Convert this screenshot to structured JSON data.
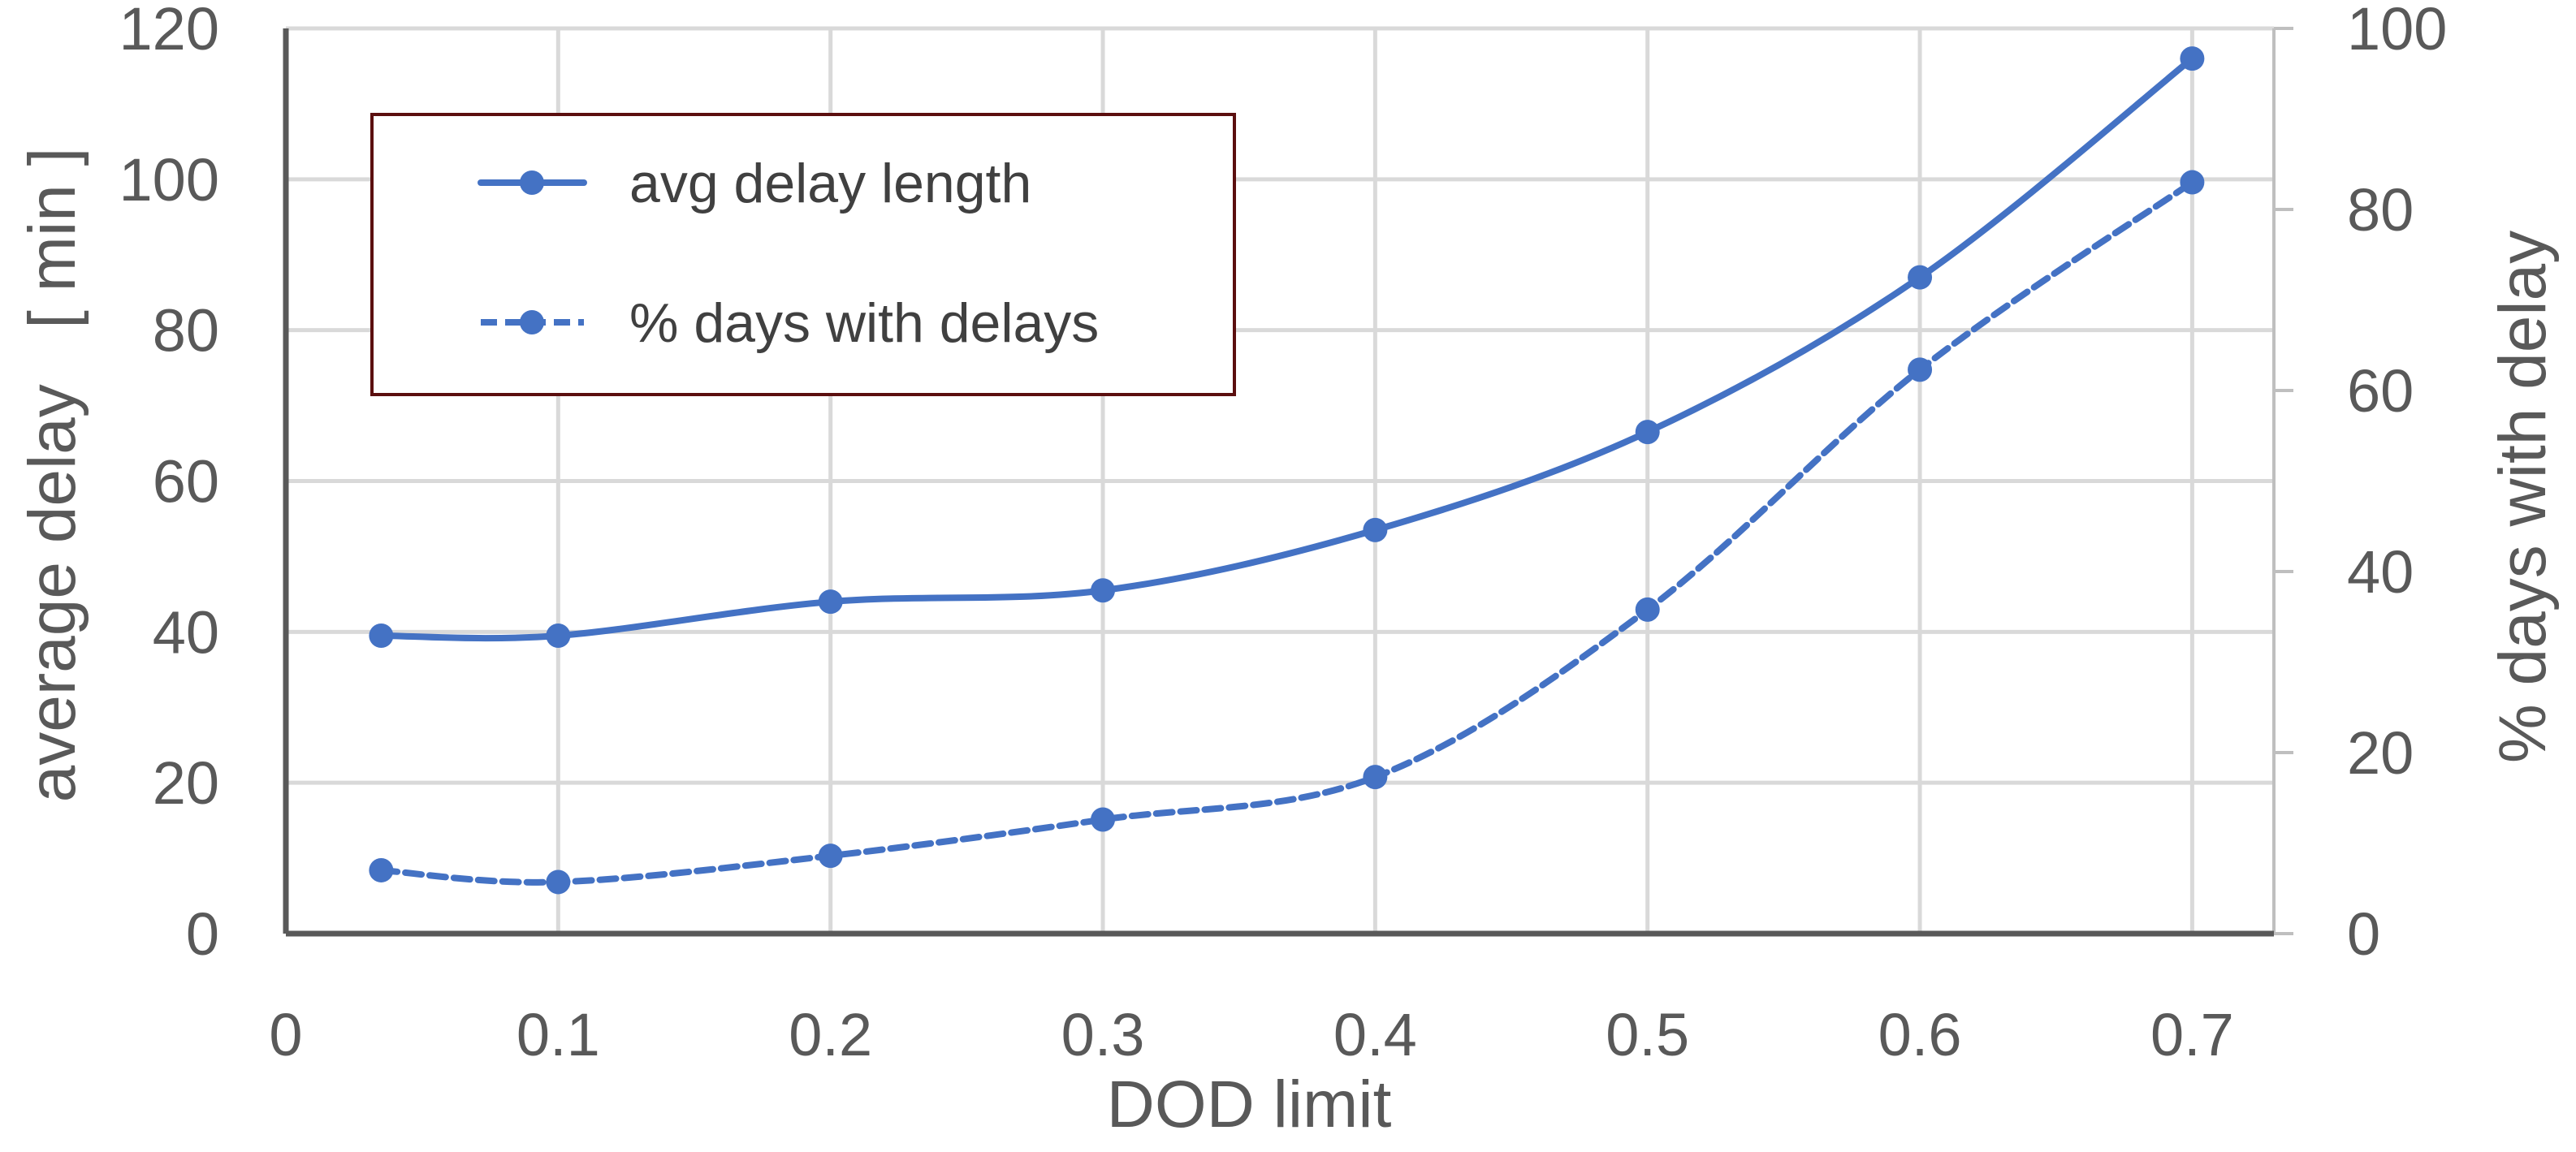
{
  "chart_data": {
    "type": "line",
    "xlabel": "DOD limit",
    "ylabel": "average delay   [ min ]",
    "y2label": "% days with delay",
    "xlim": [
      0,
      0.73
    ],
    "ylim": [
      0,
      120
    ],
    "y2lim": [
      0,
      100
    ],
    "x_ticks": [
      "0",
      "0.1",
      "0.2",
      "0.3",
      "0.4",
      "0.5",
      "0.6",
      "0.7"
    ],
    "y_ticks": [
      "0",
      "20",
      "40",
      "60",
      "80",
      "100",
      "120"
    ],
    "y2_ticks": [
      "0",
      "20",
      "40",
      "60",
      "80",
      "100"
    ],
    "grid": true,
    "legend_position": "top-left",
    "series": [
      {
        "name": "avg delay length",
        "axis": "left",
        "line_style": "solid",
        "color": "#4472c4",
        "x": [
          0.035,
          0.1,
          0.2,
          0.3,
          0.4,
          0.5,
          0.6,
          0.7
        ],
        "values": [
          39.5,
          39.5,
          44,
          45.5,
          53.5,
          66.5,
          87,
          116
        ]
      },
      {
        "name": "% days with delays",
        "axis": "right",
        "line_style": "dashed",
        "color": "#4472c4",
        "x": [
          0.035,
          0.1,
          0.2,
          0.3,
          0.4,
          0.5,
          0.6,
          0.7
        ],
        "values": [
          7,
          5.7,
          8.6,
          12.6,
          17.3,
          35.8,
          62.3,
          83
        ]
      }
    ]
  },
  "ui": {
    "accent_color": "#4472c4",
    "legend_border_color": "#5b0f0f"
  }
}
